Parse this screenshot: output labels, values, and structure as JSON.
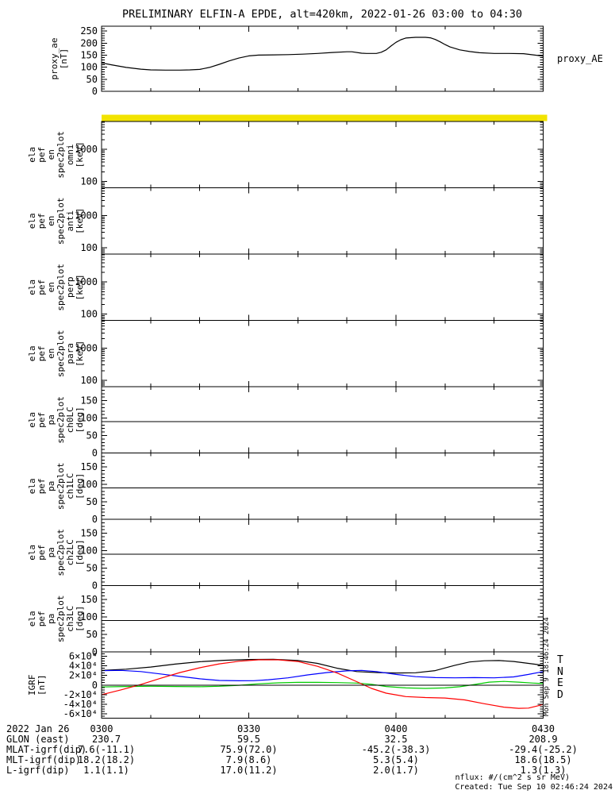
{
  "title": "PRELIMINARY ELFIN-A EPDE, alt=420km, 2022-01-26 03:00 to 04:30",
  "colors": {
    "axis": "#000000",
    "background": "#ffffff",
    "spectrogram_band": "#f2e300",
    "trace_T": "#000000",
    "trace_N": "#0000ff",
    "trace_E": "#00cc00",
    "trace_D": "#ff0000"
  },
  "xaxis": {
    "date_label": "2022 Jan 26",
    "tick_labels": [
      "0300",
      "0330",
      "0400",
      "0430"
    ],
    "range_minutes": [
      0,
      90
    ],
    "major_step_minutes": 30,
    "minor_step_minutes": 10
  },
  "footer_rows": [
    {
      "label": "GLON (east)",
      "values": [
        "230.7",
        "59.5",
        "32.5",
        "208.9"
      ]
    },
    {
      "label": "MLAT-igrf(dip)",
      "values": [
        "7.6(-11.1)",
        "75.9(72.0)",
        "-45.2(-38.3)",
        "-29.4(-25.2)"
      ]
    },
    {
      "label": "MLT-igrf(dip)",
      "values": [
        "18.2(18.2)",
        "7.9(8.6)",
        "5.3(5.4)",
        "18.6(18.5)"
      ]
    },
    {
      "label": "L-igrf(dip)",
      "values": [
        "1.1(1.1)",
        "17.0(11.2)",
        "2.0(1.7)",
        "1.3(1.3)"
      ]
    }
  ],
  "annotations": {
    "nflux_note": "nflux: #/(cm^2 s sr MeV)",
    "created_note": "Created: Tue Sep 10 02:46:24 2024",
    "side_timestamp": "Mon Sep 9 18:46:24 2024"
  },
  "chart_data": [
    {
      "id": "proxy_ae",
      "type": "line",
      "yscale": "linear",
      "ylabel_lines": [
        "proxy_ae",
        "[nT]"
      ],
      "right_label": "proxy_AE",
      "ylim": [
        0,
        270
      ],
      "y_minor_step": 10,
      "yticks": [
        {
          "v": 0,
          "label": "0"
        },
        {
          "v": 50,
          "label": "50"
        },
        {
          "v": 100,
          "label": "100"
        },
        {
          "v": 150,
          "label": "150"
        },
        {
          "v": 200,
          "label": "200"
        },
        {
          "v": 250,
          "label": "250"
        }
      ],
      "series": [
        {
          "name": "proxy_ae",
          "color": "#000000",
          "x": [
            0,
            2,
            5,
            8,
            10,
            13,
            16,
            18,
            20,
            22,
            24,
            26,
            28,
            30,
            32,
            35,
            38,
            41,
            44,
            47,
            50,
            51,
            53,
            54,
            56,
            57,
            58,
            59,
            60,
            61,
            62,
            64,
            66,
            67,
            68,
            69,
            70,
            71,
            73,
            75,
            77,
            80,
            83,
            86,
            88,
            90
          ],
          "y": [
            118,
            110,
            99,
            92,
            89,
            88,
            88,
            89,
            91,
            99,
            112,
            126,
            138,
            147,
            150,
            151,
            152,
            154,
            157,
            161,
            164,
            164,
            158,
            157,
            157,
            162,
            172,
            188,
            203,
            214,
            221,
            224,
            224,
            222,
            215,
            205,
            194,
            184,
            172,
            165,
            160,
            157,
            157,
            156,
            151,
            146
          ]
        }
      ]
    },
    {
      "id": "ela_pef_en_spec2plot_omni",
      "type": "spectrogram",
      "yscale": "log",
      "ylabel_lines": [
        "ela",
        "pef",
        "en",
        "spec2plot",
        "omni",
        "[keV]"
      ],
      "ylim": [
        63,
        7500
      ],
      "yticks": [
        {
          "v": 100,
          "label": "100"
        },
        {
          "v": 1000,
          "label": "1000"
        }
      ],
      "saturated_band": true,
      "data_present": false
    },
    {
      "id": "ela_pef_en_spec2plot_anti",
      "type": "spectrogram",
      "yscale": "log",
      "ylabel_lines": [
        "ela",
        "pef",
        "en",
        "spec2plot",
        "anti",
        "[keV]"
      ],
      "ylim": [
        63,
        7500
      ],
      "yticks": [
        {
          "v": 100,
          "label": "100"
        },
        {
          "v": 1000,
          "label": "1000"
        }
      ],
      "saturated_band": false,
      "data_present": false
    },
    {
      "id": "ela_pef_en_spec2plot_perp",
      "type": "spectrogram",
      "yscale": "log",
      "ylabel_lines": [
        "ela",
        "pef",
        "en",
        "spec2plot",
        "perp",
        "[keV]"
      ],
      "ylim": [
        63,
        7500
      ],
      "yticks": [
        {
          "v": 100,
          "label": "100"
        },
        {
          "v": 1000,
          "label": "1000"
        }
      ],
      "saturated_band": false,
      "data_present": false
    },
    {
      "id": "ela_pef_en_spec2plot_para",
      "type": "spectrogram",
      "yscale": "log",
      "ylabel_lines": [
        "ela",
        "pef",
        "en",
        "spec2plot",
        "para",
        "[keV]"
      ],
      "ylim": [
        63,
        7500
      ],
      "yticks": [
        {
          "v": 100,
          "label": "100"
        },
        {
          "v": 1000,
          "label": "1000"
        }
      ],
      "saturated_band": false,
      "data_present": false
    },
    {
      "id": "ela_pef_pa_spec2plot_ch0LC",
      "type": "spectrogram",
      "yscale": "linear",
      "ylabel_lines": [
        "ela",
        "pef",
        "pa",
        "spec2plot",
        "ch0LC",
        "[deg]"
      ],
      "ylim": [
        0,
        190
      ],
      "y_minor_step": 10,
      "reference_line": 90,
      "yticks": [
        {
          "v": 0,
          "label": "0"
        },
        {
          "v": 50,
          "label": "50"
        },
        {
          "v": 100,
          "label": "100"
        },
        {
          "v": 150,
          "label": "150"
        }
      ],
      "data_present": false
    },
    {
      "id": "ela_pef_pa_spec2plot_ch1LC",
      "type": "spectrogram",
      "yscale": "linear",
      "ylabel_lines": [
        "ela",
        "pef",
        "pa",
        "spec2plot",
        "ch1LC",
        "[deg]"
      ],
      "ylim": [
        0,
        190
      ],
      "y_minor_step": 10,
      "reference_line": 90,
      "yticks": [
        {
          "v": 0,
          "label": "0"
        },
        {
          "v": 50,
          "label": "50"
        },
        {
          "v": 100,
          "label": "100"
        },
        {
          "v": 150,
          "label": "150"
        }
      ],
      "data_present": false
    },
    {
      "id": "ela_pef_pa_spec2plot_ch2LC",
      "type": "spectrogram",
      "yscale": "linear",
      "ylabel_lines": [
        "ela",
        "pef",
        "pa",
        "spec2plot",
        "ch2LC",
        "[deg]"
      ],
      "ylim": [
        0,
        190
      ],
      "y_minor_step": 10,
      "reference_line": 90,
      "yticks": [
        {
          "v": 0,
          "label": "0"
        },
        {
          "v": 50,
          "label": "50"
        },
        {
          "v": 100,
          "label": "100"
        },
        {
          "v": 150,
          "label": "150"
        }
      ],
      "data_present": false
    },
    {
      "id": "ela_pef_pa_spec2plot_ch3LC",
      "type": "spectrogram",
      "yscale": "linear",
      "ylabel_lines": [
        "ela",
        "pef",
        "pa",
        "spec2plot",
        "ch3LC",
        "[deg]"
      ],
      "ylim": [
        0,
        190
      ],
      "y_minor_step": 10,
      "reference_line": 90,
      "yticks": [
        {
          "v": 0,
          "label": "0"
        },
        {
          "v": 50,
          "label": "50"
        },
        {
          "v": 100,
          "label": "100"
        },
        {
          "v": 150,
          "label": "150"
        }
      ],
      "data_present": false
    },
    {
      "id": "igrf",
      "type": "line",
      "yscale": "linear",
      "ylabel_lines": [
        "IGRF",
        "[nT]"
      ],
      "ylim": [
        -69000,
        69000
      ],
      "y_minor_step": 5000,
      "reference_line": 0,
      "yticks": [
        {
          "v": -60000,
          "label": "-6×10⁴"
        },
        {
          "v": -40000,
          "label": "-4×10⁴"
        },
        {
          "v": -20000,
          "label": "-2×10⁴"
        },
        {
          "v": 0,
          "label": "0"
        },
        {
          "v": 20000,
          "label": "2×10⁴"
        },
        {
          "v": 40000,
          "label": "4×10⁴"
        },
        {
          "v": 60000,
          "label": "6×10⁴"
        }
      ],
      "legend": [
        {
          "label": "T",
          "color": "#000000"
        },
        {
          "label": "N",
          "color": "#0000ff"
        },
        {
          "label": "E",
          "color": "#00cc00"
        },
        {
          "label": "D",
          "color": "#ff0000"
        }
      ],
      "series": [
        {
          "name": "T",
          "color": "#000000",
          "x": [
            0,
            5,
            10,
            15,
            20,
            25,
            30,
            35,
            40,
            44,
            48,
            52,
            56,
            60,
            64,
            68,
            72,
            75,
            78,
            81,
            84,
            87,
            90
          ],
          "y": [
            30500,
            33000,
            37500,
            43500,
            48500,
            51500,
            53200,
            53500,
            51000,
            45000,
            35000,
            28000,
            26000,
            25000,
            25500,
            30000,
            41000,
            48000,
            50500,
            51000,
            49000,
            45000,
            41000
          ]
        },
        {
          "name": "N",
          "color": "#0000ff",
          "x": [
            0,
            4,
            8,
            12,
            16,
            20,
            24,
            28,
            31,
            34,
            38,
            42,
            46,
            50,
            53,
            56,
            60,
            64,
            68,
            72,
            76,
            80,
            84,
            87,
            90
          ],
          "y": [
            30000,
            30500,
            28000,
            23000,
            18000,
            13000,
            9500,
            8800,
            9000,
            11000,
            15000,
            21000,
            26000,
            29500,
            30500,
            28000,
            22000,
            17500,
            15500,
            15000,
            15500,
            15000,
            17000,
            22000,
            28000
          ]
        },
        {
          "name": "E",
          "color": "#00cc00",
          "x": [
            0,
            5,
            10,
            15,
            20,
            24,
            28,
            32,
            36,
            40,
            44,
            48,
            52,
            55,
            58,
            62,
            66,
            70,
            73,
            76,
            79,
            82,
            85,
            88,
            90
          ],
          "y": [
            -4000,
            -3000,
            -2500,
            -3000,
            -3500,
            -2500,
            -500,
            2500,
            4500,
            5500,
            5500,
            5000,
            4000,
            1500,
            -3000,
            -6000,
            -7000,
            -6000,
            -3500,
            1000,
            6000,
            7500,
            6000,
            4000,
            3000
          ]
        },
        {
          "name": "D",
          "color": "#ff0000",
          "x": [
            0,
            4,
            8,
            12,
            16,
            20,
            24,
            28,
            32,
            36,
            40,
            44,
            48,
            52,
            55,
            58,
            62,
            66,
            70,
            74,
            78,
            82,
            85,
            87,
            89,
            90
          ],
          "y": [
            -20000,
            -10000,
            1000,
            14000,
            26000,
            36000,
            44000,
            49500,
            52500,
            52500,
            49000,
            39000,
            25000,
            7000,
            -7000,
            -17000,
            -24000,
            -26000,
            -27000,
            -31000,
            -39000,
            -46000,
            -48500,
            -48000,
            -43000,
            -40000
          ]
        }
      ]
    }
  ]
}
